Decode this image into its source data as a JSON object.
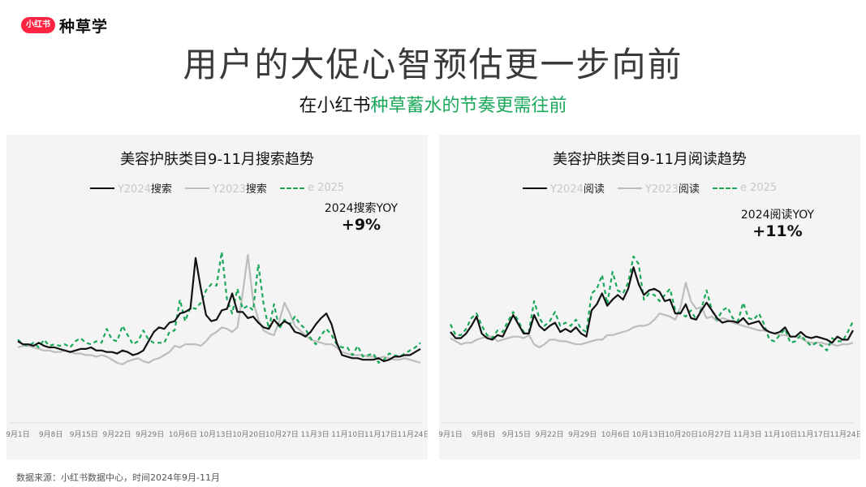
{
  "logo": {
    "badge": "小红书",
    "text": "种草学"
  },
  "title": "用户的大促心智预估更一步向前",
  "subtitle": {
    "prefix": "在小红书",
    "highlight": "种草蓄水的节奏更需往前"
  },
  "footer": "数据来源：小红书数据中心，时间2024年9月-11月",
  "colors": {
    "y2024": "#111111",
    "y2023": "#bdbdbd",
    "e2025": "#1aa85a"
  },
  "x_ticks": [
    "9月1日",
    "9月8日",
    "9月15日",
    "9月22日",
    "9月29日",
    "10月6日",
    "10月13日",
    "10月20日",
    "10月27日",
    "11月3日",
    "11月10日",
    "11月17日",
    "11月24日"
  ],
  "chart_data": [
    {
      "type": "line",
      "title": "美容护肤类目9-11月搜索趋势",
      "legend": [
        "Y2024搜索",
        "Y2023搜索",
        "e 2025"
      ],
      "legend_placement": "top-center",
      "annotation": {
        "label": "2024搜索YOY",
        "value": "+9%"
      },
      "grid": false,
      "x_ticks": [
        "9月1日",
        "9月8日",
        "9月15日",
        "9月22日",
        "9月29日",
        "10月6日",
        "10月13日",
        "10月20日",
        "10月27日",
        "11月3日",
        "11月10日",
        "11月17日",
        "11月24日"
      ],
      "ylim": [
        0,
        100
      ],
      "series": [
        {
          "name": "Y2024搜索",
          "style": "solid-black",
          "values": [
            24,
            22,
            22,
            21,
            23,
            21,
            20,
            20,
            19,
            18,
            17,
            18,
            19,
            19,
            20,
            18,
            18,
            17,
            17,
            16,
            18,
            17,
            15,
            16,
            18,
            24,
            30,
            33,
            32,
            36,
            37,
            42,
            43,
            45,
            78,
            58,
            41,
            37,
            38,
            44,
            45,
            55,
            43,
            43,
            39,
            40,
            36,
            33,
            32,
            38,
            34,
            37,
            35,
            30,
            29,
            27,
            30,
            35,
            39,
            42,
            35,
            23,
            15,
            14,
            13,
            13,
            12,
            12,
            12,
            13,
            11,
            12,
            14,
            14,
            15,
            15,
            17,
            19
          ]
        },
        {
          "name": "Y2023搜索",
          "style": "solid-grey",
          "values": [
            20,
            21,
            21,
            20,
            19,
            18,
            18,
            17,
            17,
            18,
            17,
            16,
            16,
            15,
            15,
            14,
            15,
            14,
            12,
            10,
            9,
            11,
            12,
            13,
            11,
            10,
            12,
            13,
            15,
            17,
            21,
            20,
            22,
            22,
            22,
            21,
            24,
            28,
            30,
            33,
            32,
            30,
            33,
            55,
            80,
            50,
            38,
            31,
            29,
            28,
            37,
            49,
            42,
            34,
            31,
            28,
            25,
            24,
            23,
            22,
            22,
            20,
            17,
            16,
            15,
            15,
            15,
            14,
            14,
            13,
            14,
            13,
            12,
            12,
            13,
            12,
            11,
            10
          ]
        },
        {
          "name": "e 2025",
          "style": "dashed-green",
          "values": [
            25,
            22,
            21,
            23,
            20,
            25,
            21,
            22,
            21,
            22,
            20,
            24,
            26,
            23,
            22,
            24,
            23,
            32,
            25,
            24,
            34,
            28,
            22,
            24,
            31,
            25,
            23,
            23,
            23,
            30,
            31,
            51,
            37,
            46,
            45,
            49,
            57,
            61,
            60,
            82,
            51,
            42,
            58,
            45,
            47,
            44,
            74,
            48,
            32,
            48,
            32,
            38,
            35,
            40,
            35,
            32,
            26,
            22,
            28,
            32,
            28,
            22,
            20,
            20,
            15,
            21,
            14,
            15,
            16,
            10,
            12,
            16,
            15,
            14,
            16,
            18,
            20,
            23
          ]
        }
      ]
    },
    {
      "type": "line",
      "title": "美容护肤类目9-11月阅读趋势",
      "legend": [
        "Y2024阅读",
        "Y2023阅读",
        "e 2025"
      ],
      "legend_placement": "top-center",
      "annotation": {
        "label": "2024阅读YOY",
        "value": "+11%"
      },
      "grid": false,
      "x_ticks": [
        "9月1日",
        "9月8日",
        "9月15日",
        "9月22日",
        "9月29日",
        "10月6日",
        "10月13日",
        "10月20日",
        "10月27日",
        "11月3日",
        "11月10日",
        "11月17日",
        "11月24日"
      ],
      "ylim": [
        0,
        100
      ],
      "series": [
        {
          "name": "Y2024阅读",
          "style": "solid-black",
          "values": [
            30,
            26,
            26,
            29,
            34,
            40,
            29,
            26,
            25,
            28,
            27,
            34,
            41,
            35,
            29,
            29,
            41,
            34,
            31,
            34,
            36,
            30,
            32,
            30,
            33,
            29,
            27,
            44,
            48,
            55,
            47,
            51,
            54,
            51,
            58,
            72,
            61,
            54,
            57,
            58,
            56,
            50,
            51,
            42,
            42,
            48,
            39,
            38,
            44,
            49,
            44,
            39,
            36,
            37,
            37,
            36,
            39,
            35,
            36,
            37,
            32,
            30,
            29,
            30,
            33,
            27,
            27,
            30,
            27,
            26,
            27,
            26,
            25,
            23,
            27,
            25,
            25,
            31
          ]
        },
        {
          "name": "Y2023阅读",
          "style": "solid-grey",
          "values": [
            26,
            24,
            22,
            23,
            23,
            25,
            26,
            27,
            27,
            24,
            25,
            26,
            27,
            27,
            26,
            28,
            22,
            20,
            22,
            25,
            25,
            24,
            24,
            23,
            22,
            22,
            23,
            24,
            25,
            25,
            28,
            28,
            29,
            30,
            31,
            33,
            34,
            34,
            35,
            38,
            42,
            41,
            40,
            38,
            46,
            62,
            50,
            45,
            46,
            39,
            40,
            37,
            39,
            38,
            36,
            35,
            34,
            33,
            32,
            31,
            31,
            30,
            29,
            28,
            28,
            27,
            27,
            26,
            24,
            23,
            23,
            23,
            22,
            22,
            21,
            22,
            22,
            23
          ]
        },
        {
          "name": "e 2025",
          "style": "dashed-green",
          "values": [
            35,
            28,
            28,
            32,
            39,
            42,
            34,
            28,
            26,
            31,
            30,
            37,
            43,
            37,
            30,
            30,
            50,
            39,
            34,
            37,
            43,
            34,
            36,
            34,
            38,
            32,
            30,
            55,
            58,
            67,
            48,
            69,
            57,
            55,
            62,
            79,
            74,
            51,
            55,
            54,
            50,
            54,
            58,
            44,
            42,
            40,
            44,
            38,
            45,
            57,
            44,
            38,
            44,
            46,
            39,
            37,
            49,
            39,
            38,
            42,
            35,
            25,
            24,
            28,
            32,
            23,
            24,
            28,
            24,
            21,
            23,
            21,
            18,
            26,
            24,
            24,
            30,
            37
          ]
        }
      ]
    }
  ]
}
